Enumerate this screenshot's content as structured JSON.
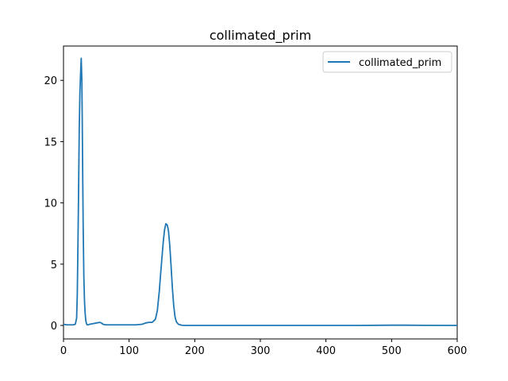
{
  "chart_data": {
    "type": "line",
    "title": "collimated_prim",
    "xlabel": "",
    "ylabel": "",
    "xlim": [
      0,
      600
    ],
    "ylim": [
      -1.1,
      22.8
    ],
    "xticks": [
      0,
      100,
      200,
      300,
      400,
      500,
      600
    ],
    "yticks": [
      0,
      5,
      10,
      15,
      20
    ],
    "grid": false,
    "legend_position": "top-right",
    "series": [
      {
        "name": "collimated_prim",
        "color": "#1f77b4",
        "x": [
          0,
          5,
          10,
          15,
          18,
          20,
          21,
          22,
          23,
          24,
          25,
          26,
          27,
          28,
          29,
          30,
          31,
          32,
          33,
          34,
          35,
          36,
          38,
          40,
          45,
          50,
          55,
          58,
          60,
          65,
          70,
          80,
          90,
          100,
          110,
          120,
          125,
          130,
          135,
          140,
          143,
          146,
          148,
          150,
          152,
          154,
          156,
          158,
          159,
          160,
          162,
          164,
          166,
          168,
          170,
          172,
          175,
          180,
          185,
          190,
          200,
          250,
          300,
          350,
          400,
          450,
          500,
          520,
          550,
          600
        ],
        "values": [
          0.1,
          0.05,
          0.05,
          0.05,
          0.1,
          0.6,
          2.5,
          6.5,
          11,
          16,
          19,
          20.5,
          21.8,
          20,
          14,
          8,
          4,
          2,
          1,
          0.4,
          0.15,
          0.05,
          0.05,
          0.1,
          0.15,
          0.2,
          0.25,
          0.2,
          0.1,
          0.05,
          0.05,
          0.05,
          0.05,
          0.05,
          0.05,
          0.1,
          0.2,
          0.25,
          0.25,
          0.5,
          1.2,
          2.8,
          4.2,
          5.5,
          6.8,
          7.8,
          8.3,
          8.2,
          8.0,
          7.7,
          6.5,
          4.8,
          3.0,
          1.6,
          0.7,
          0.3,
          0.1,
          0.02,
          0.0,
          0.0,
          0.0,
          0.0,
          0.0,
          0.0,
          0.0,
          0.0,
          0.02,
          0.02,
          0.01,
          0.0
        ]
      }
    ]
  }
}
